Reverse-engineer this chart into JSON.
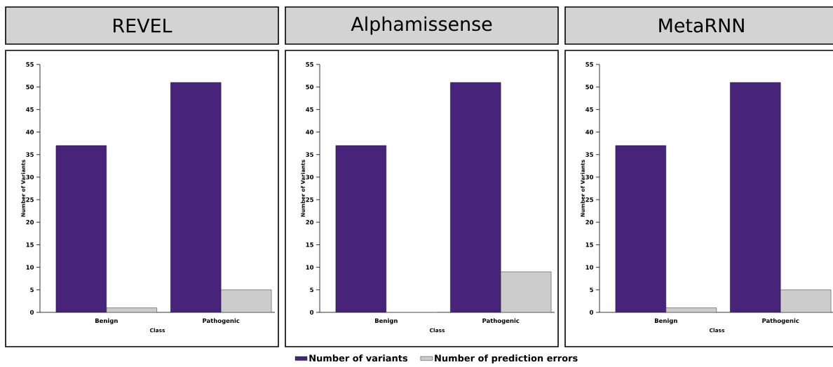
{
  "chart_data": [
    {
      "type": "bar",
      "title": "REVEL",
      "xlabel": "Class",
      "ylabel": "Number of Variants",
      "categories": [
        "Benign",
        "Pathogenic"
      ],
      "ylim": [
        0,
        55
      ],
      "yticks": [
        0,
        5,
        10,
        15,
        20,
        25,
        30,
        35,
        40,
        45,
        50,
        55
      ],
      "series": [
        {
          "color": "#48237a",
          "values": [
            37,
            51
          ]
        },
        {
          "color": "#cccccc",
          "values": [
            1,
            5
          ]
        }
      ]
    },
    {
      "type": "bar",
      "title": "Alphamissense",
      "xlabel": "Class",
      "ylabel": "Number of Variants",
      "categories": [
        "Benign",
        "Pathogenic"
      ],
      "ylim": [
        0,
        55
      ],
      "yticks": [
        0,
        5,
        10,
        15,
        20,
        25,
        30,
        35,
        40,
        45,
        50,
        55
      ],
      "legend": "bottom",
      "series": [
        {
          "name": "Number of variants",
          "color": "#48237a",
          "values": [
            37,
            51
          ]
        },
        {
          "name": "Number of prediction errors",
          "color": "#cccccc",
          "values": [
            0,
            9
          ]
        }
      ]
    },
    {
      "type": "bar",
      "title": "MetaRNN",
      "xlabel": "Class",
      "ylabel": "Number of Variants",
      "categories": [
        "Benign",
        "Pathogenic"
      ],
      "ylim": [
        0,
        55
      ],
      "yticks": [
        0,
        5,
        10,
        15,
        20,
        25,
        30,
        35,
        40,
        45,
        50,
        55
      ],
      "series": [
        {
          "color": "#48237a",
          "values": [
            37,
            51
          ]
        },
        {
          "color": "#cccccc",
          "values": [
            1,
            5
          ]
        }
      ]
    }
  ]
}
